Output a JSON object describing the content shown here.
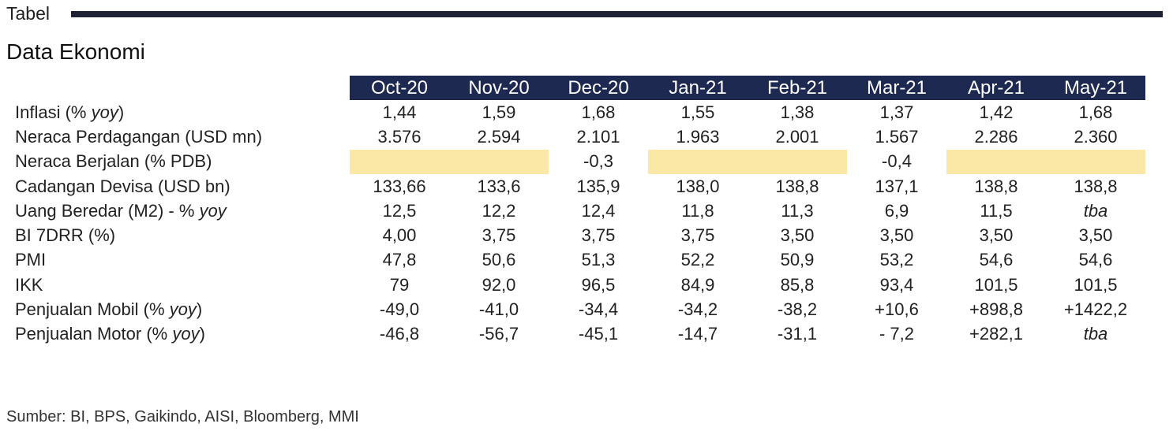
{
  "header": {
    "label": "Tabel",
    "title": "Data Ekonomi"
  },
  "table": {
    "columns": [
      "Oct-20",
      "Nov-20",
      "Dec-20",
      "Jan-21",
      "Feb-21",
      "Mar-21",
      "Apr-21",
      "May-21"
    ],
    "rows": [
      {
        "label": "Inflasi (% ",
        "label_ital": "yoy",
        "label_end": ")",
        "values": [
          "1,44",
          "1,59",
          "1,68",
          "1,55",
          "1,38",
          "1,37",
          "1,42",
          "1,68"
        ]
      },
      {
        "label": "Neraca Perdagangan (USD mn)",
        "label_ital": "",
        "label_end": "",
        "values": [
          "3.576",
          "2.594",
          "2.101",
          "1.963",
          "2.001",
          "1.567",
          "2.286",
          "2.360"
        ]
      },
      {
        "label": "Neraca Berjalan (% PDB)",
        "label_ital": "",
        "label_end": "",
        "values": [
          "",
          "",
          "-0,3",
          "",
          "",
          "-0,4",
          "",
          ""
        ]
      },
      {
        "label": "Cadangan Devisa (USD bn)",
        "label_ital": "",
        "label_end": "",
        "values": [
          "133,66",
          "133,6",
          "135,9",
          "138,0",
          "138,8",
          "137,1",
          "138,8",
          "138,8"
        ]
      },
      {
        "label": "Uang Beredar (M2) - % ",
        "label_ital": "yoy",
        "label_end": "",
        "values": [
          "12,5",
          "12,2",
          "12,4",
          "11,8",
          "11,3",
          "6,9",
          "11,5",
          "tba"
        ]
      },
      {
        "label": "BI 7DRR (%)",
        "label_ital": "",
        "label_end": "",
        "values": [
          "4,00",
          "3,75",
          "3,75",
          "3,75",
          "3,50",
          "3,50",
          "3,50",
          "3,50"
        ]
      },
      {
        "label": "PMI",
        "label_ital": "",
        "label_end": "",
        "values": [
          "47,8",
          "50,6",
          "51,3",
          "52,2",
          "50,9",
          "53,2",
          "54,6",
          "54,6"
        ]
      },
      {
        "label": "IKK",
        "label_ital": "",
        "label_end": "",
        "values": [
          "79",
          "92,0",
          "96,5",
          "84,9",
          "85,8",
          "93,4",
          "101,5",
          "101,5"
        ]
      },
      {
        "label": "Penjualan Mobil (% ",
        "label_ital": "yoy",
        "label_end": ")",
        "values": [
          "-49,0",
          "-41,0",
          "-34,4",
          "-34,2",
          "-38,2",
          "+10,6",
          "+898,8",
          "+1422,2"
        ]
      },
      {
        "label": "Penjualan Motor (% ",
        "label_ital": "yoy",
        "label_end": ")",
        "values": [
          "-46,8",
          "-56,7",
          "-45,1",
          "-14,7",
          "-31,1",
          "- 7,2",
          "+282,1",
          "tba"
        ]
      }
    ],
    "highlight_color": "#fbe7a6",
    "header_color": "#1d2951"
  },
  "footer": {
    "source": "Sumber: BI, BPS, Gaikindo, AISI, Bloomberg, MMI"
  }
}
